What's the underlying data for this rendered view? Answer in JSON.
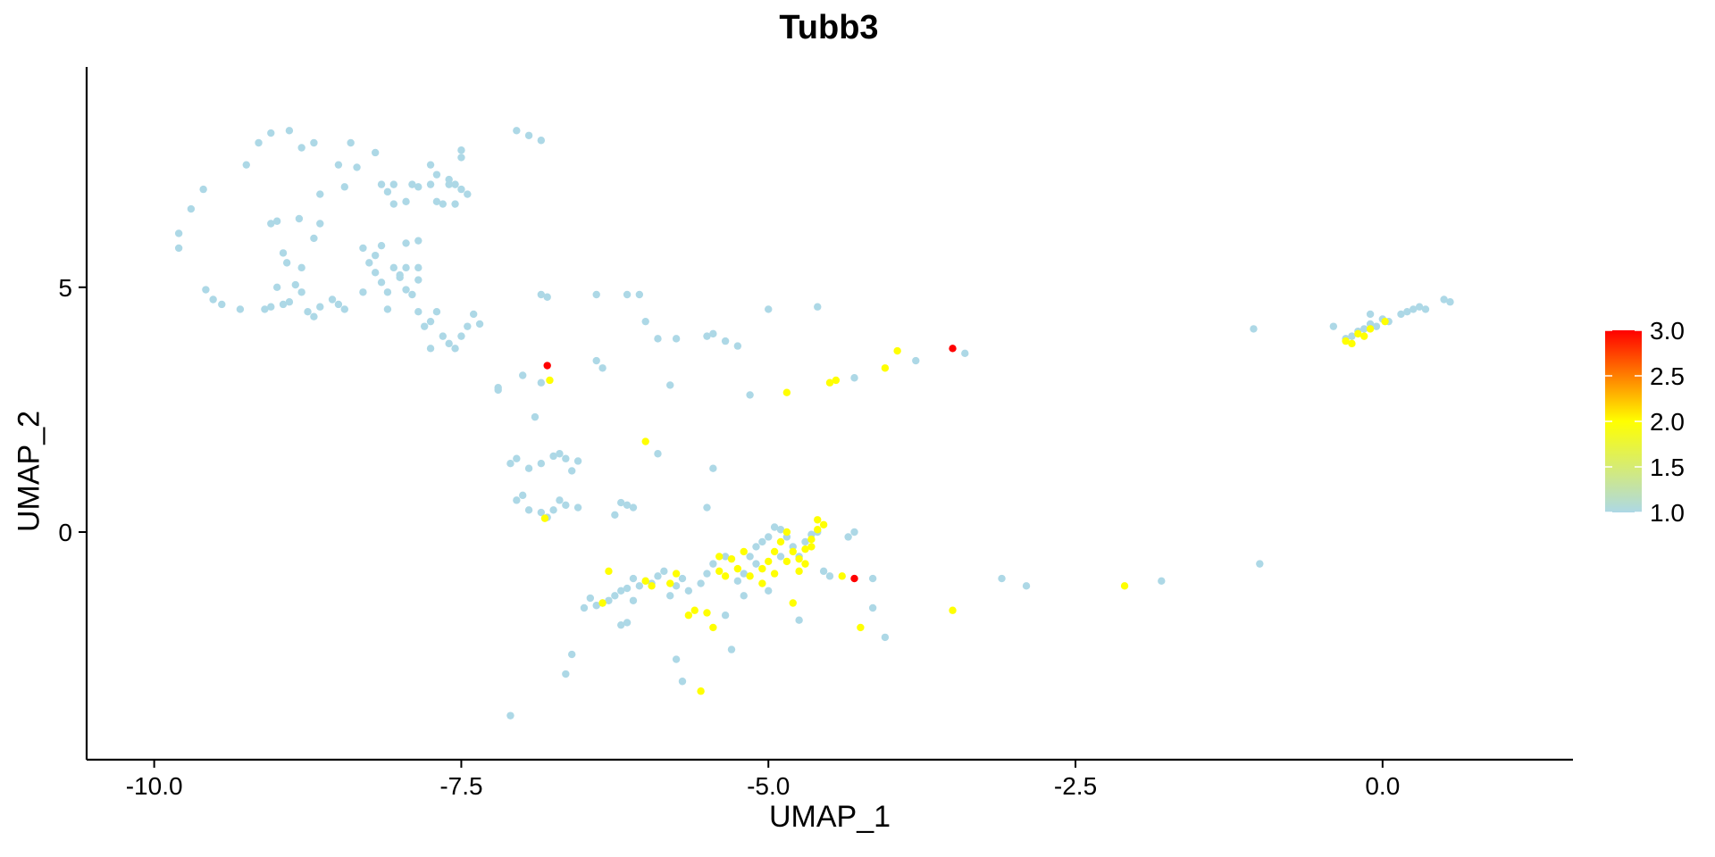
{
  "chart_data": {
    "type": "scatter",
    "title": "Tubb3",
    "xlabel": "UMAP_1",
    "ylabel": "UMAP_2",
    "xlim": [
      -10.55,
      1.55
    ],
    "ylim": [
      -4.65,
      9.5
    ],
    "x_ticks": [
      -10.0,
      -7.5,
      -5.0,
      -2.5,
      0.0
    ],
    "x_tick_labels": [
      "-10.0",
      "-7.5",
      "-5.0",
      "-2.5",
      "0.0"
    ],
    "y_ticks": [
      0,
      5
    ],
    "y_tick_labels": [
      "0",
      "5"
    ],
    "grid": false,
    "legend": {
      "type": "colorbar",
      "position": "right",
      "min": 1.0,
      "max": 3.0,
      "ticks": [
        1.0,
        1.5,
        2.0,
        2.5,
        3.0
      ],
      "tick_labels": [
        "1.0",
        "1.5",
        "2.0",
        "2.5",
        "3.0"
      ],
      "colors": [
        "#add8e6",
        "#ffff00",
        "#ff0000"
      ]
    },
    "colors": {
      "low": "#add8e6",
      "mid": "#ffff00",
      "high": "#ff0000"
    },
    "points": [
      [
        -9.8,
        6.1,
        1
      ],
      [
        -9.8,
        5.8,
        1
      ],
      [
        -9.58,
        4.95,
        1
      ],
      [
        -9.52,
        4.75,
        1
      ],
      [
        -9.45,
        4.65,
        1
      ],
      [
        -9.6,
        7.0,
        1
      ],
      [
        -9.7,
        6.6,
        1
      ],
      [
        -9.3,
        4.55,
        1
      ],
      [
        -9.1,
        4.55,
        1
      ],
      [
        -9.05,
        4.6,
        1
      ],
      [
        -8.95,
        4.65,
        1
      ],
      [
        -8.9,
        4.7,
        1
      ],
      [
        -9.0,
        5.0,
        1
      ],
      [
        -8.85,
        5.05,
        1
      ],
      [
        -8.8,
        4.9,
        1
      ],
      [
        -8.75,
        4.5,
        1
      ],
      [
        -8.7,
        4.4,
        1
      ],
      [
        -8.65,
        4.6,
        1
      ],
      [
        -9.05,
        6.3,
        1
      ],
      [
        -9.0,
        6.35,
        1
      ],
      [
        -8.95,
        5.7,
        1
      ],
      [
        -8.92,
        5.5,
        1
      ],
      [
        -8.8,
        5.4,
        1
      ],
      [
        -8.7,
        6.0,
        1
      ],
      [
        -8.65,
        6.3,
        1
      ],
      [
        -8.82,
        6.4,
        1
      ],
      [
        -9.25,
        7.5,
        1
      ],
      [
        -9.15,
        7.95,
        1
      ],
      [
        -9.05,
        8.15,
        1
      ],
      [
        -8.9,
        8.2,
        1
      ],
      [
        -8.8,
        7.85,
        1
      ],
      [
        -8.7,
        7.95,
        1
      ],
      [
        -8.5,
        7.5,
        1
      ],
      [
        -8.4,
        7.95,
        1
      ],
      [
        -8.35,
        7.45,
        1
      ],
      [
        -8.2,
        7.75,
        1
      ],
      [
        -8.65,
        6.9,
        1
      ],
      [
        -8.45,
        7.05,
        1
      ],
      [
        -8.55,
        4.75,
        1
      ],
      [
        -8.5,
        4.65,
        1
      ],
      [
        -8.45,
        4.55,
        1
      ],
      [
        -8.3,
        4.9,
        1
      ],
      [
        -8.25,
        5.5,
        1
      ],
      [
        -8.2,
        5.3,
        1
      ],
      [
        -8.15,
        5.1,
        1
      ],
      [
        -8.1,
        4.9,
        1
      ],
      [
        -8.05,
        5.4,
        1
      ],
      [
        -8.0,
        5.2,
        1
      ],
      [
        -7.95,
        4.95,
        1
      ],
      [
        -8.3,
        5.8,
        1
      ],
      [
        -8.2,
        5.65,
        1
      ],
      [
        -8.1,
        4.55,
        1
      ],
      [
        -7.9,
        4.85,
        1
      ],
      [
        -7.85,
        4.5,
        1
      ],
      [
        -7.8,
        4.2,
        1
      ],
      [
        -7.75,
        4.3,
        1
      ],
      [
        -7.7,
        4.5,
        1
      ],
      [
        -7.65,
        4.0,
        1
      ],
      [
        -7.6,
        3.85,
        1
      ],
      [
        -7.55,
        3.75,
        1
      ],
      [
        -7.5,
        4.0,
        1
      ],
      [
        -7.45,
        4.2,
        1
      ],
      [
        -7.4,
        4.45,
        1
      ],
      [
        -7.35,
        4.25,
        1
      ],
      [
        -7.2,
        2.95,
        1
      ],
      [
        -7.2,
        2.9,
        1
      ],
      [
        -7.75,
        3.75,
        1
      ],
      [
        -7.85,
        5.4,
        1
      ],
      [
        -7.85,
        5.15,
        1
      ],
      [
        -7.95,
        5.9,
        1
      ],
      [
        -8.15,
        5.85,
        1
      ],
      [
        -8.1,
        6.95,
        1
      ],
      [
        -8.05,
        7.1,
        1
      ],
      [
        -7.95,
        6.75,
        1
      ],
      [
        -7.9,
        7.1,
        1
      ],
      [
        -7.85,
        7.05,
        1
      ],
      [
        -7.75,
        7.1,
        1
      ],
      [
        -7.7,
        6.75,
        1
      ],
      [
        -7.65,
        6.7,
        1
      ],
      [
        -7.55,
        6.7,
        1
      ],
      [
        -7.5,
        7.0,
        1
      ],
      [
        -7.55,
        7.1,
        1
      ],
      [
        -7.6,
        7.1,
        1
      ],
      [
        -7.7,
        7.3,
        1
      ],
      [
        -7.75,
        7.5,
        1
      ],
      [
        -7.5,
        7.65,
        1
      ],
      [
        -7.45,
        6.9,
        1
      ],
      [
        -7.85,
        5.95,
        1
      ],
      [
        -7.95,
        5.4,
        1
      ],
      [
        -8.0,
        5.25,
        1
      ],
      [
        -8.05,
        6.7,
        1
      ],
      [
        -8.15,
        7.1,
        1
      ],
      [
        -7.5,
        7.8,
        1
      ],
      [
        -7.6,
        7.2,
        1
      ],
      [
        -7.05,
        8.2,
        1
      ],
      [
        -6.95,
        8.1,
        1
      ],
      [
        -6.85,
        8.0,
        1
      ],
      [
        -6.85,
        4.85,
        1
      ],
      [
        -6.8,
        4.8,
        1
      ],
      [
        -6.85,
        3.05,
        1
      ],
      [
        -7.0,
        3.2,
        1
      ],
      [
        -6.8,
        3.4,
        3
      ],
      [
        -6.9,
        2.35,
        1
      ],
      [
        -7.05,
        1.5,
        1
      ],
      [
        -7.1,
        1.4,
        1
      ],
      [
        -6.95,
        1.3,
        1
      ],
      [
        -6.85,
        1.4,
        1
      ],
      [
        -6.75,
        1.55,
        1
      ],
      [
        -6.7,
        1.6,
        1
      ],
      [
        -6.65,
        1.5,
        1
      ],
      [
        -6.6,
        1.25,
        1
      ],
      [
        -6.55,
        1.45,
        1
      ],
      [
        -7.0,
        0.75,
        1
      ],
      [
        -7.05,
        0.65,
        1
      ],
      [
        -6.95,
        0.45,
        1
      ],
      [
        -6.85,
        0.4,
        1
      ],
      [
        -6.8,
        0.3,
        1
      ],
      [
        -6.75,
        0.45,
        1
      ],
      [
        -6.7,
        0.65,
        1
      ],
      [
        -6.65,
        0.55,
        1
      ],
      [
        -6.55,
        0.5,
        1
      ],
      [
        -6.2,
        0.6,
        1
      ],
      [
        -6.15,
        0.55,
        1
      ],
      [
        -6.1,
        0.5,
        1
      ],
      [
        -6.25,
        0.35,
        1
      ],
      [
        -6.0,
        1.85,
        2
      ],
      [
        -5.9,
        1.6,
        1
      ],
      [
        -6.4,
        4.85,
        1
      ],
      [
        -6.15,
        4.85,
        1
      ],
      [
        -6.05,
        4.85,
        1
      ],
      [
        -6.0,
        4.3,
        1
      ],
      [
        -5.9,
        3.95,
        1
      ],
      [
        -5.5,
        4.0,
        1
      ],
      [
        -5.45,
        4.05,
        1
      ],
      [
        -5.35,
        3.9,
        1
      ],
      [
        -5.25,
        3.8,
        1
      ],
      [
        -5.0,
        4.55,
        1
      ],
      [
        -5.75,
        3.95,
        1
      ],
      [
        -6.4,
        3.5,
        1
      ],
      [
        -6.35,
        3.35,
        1
      ],
      [
        -5.45,
        1.3,
        1
      ],
      [
        -5.5,
        0.5,
        1
      ],
      [
        -6.78,
        3.1,
        2
      ],
      [
        -6.82,
        0.28,
        2
      ],
      [
        -5.8,
        3.0,
        1
      ],
      [
        -5.15,
        2.8,
        1
      ],
      [
        -4.85,
        2.85,
        2
      ],
      [
        -4.5,
        3.05,
        2
      ],
      [
        -4.45,
        3.1,
        2
      ],
      [
        -4.3,
        3.15,
        1
      ],
      [
        -4.05,
        3.35,
        2
      ],
      [
        -3.95,
        3.7,
        2
      ],
      [
        -3.8,
        3.5,
        1
      ],
      [
        -3.5,
        3.75,
        3
      ],
      [
        -3.4,
        3.65,
        1
      ],
      [
        -4.6,
        4.6,
        1
      ],
      [
        -5.35,
        -1.7,
        1
      ],
      [
        -5.3,
        -2.4,
        1
      ],
      [
        -5.2,
        -1.3,
        1
      ],
      [
        -5.15,
        -0.5,
        1
      ],
      [
        -5.1,
        -0.3,
        1
      ],
      [
        -5.05,
        -0.2,
        1
      ],
      [
        -5.0,
        -0.1,
        1
      ],
      [
        -4.95,
        0.1,
        1
      ],
      [
        -4.9,
        0.05,
        1
      ],
      [
        -4.85,
        -0.1,
        1
      ],
      [
        -4.8,
        -0.3,
        1
      ],
      [
        -4.75,
        -0.5,
        1
      ],
      [
        -4.7,
        -0.2,
        1
      ],
      [
        -4.65,
        -0.05,
        1
      ],
      [
        -4.6,
        0.0,
        1
      ],
      [
        -4.55,
        -0.8,
        1
      ],
      [
        -4.5,
        -0.9,
        1
      ],
      [
        -4.35,
        -0.1,
        1
      ],
      [
        -4.3,
        0.0,
        1
      ],
      [
        -4.15,
        -0.95,
        1
      ],
      [
        -4.15,
        -1.55,
        1
      ],
      [
        -4.05,
        -2.15,
        1
      ],
      [
        -5.05,
        -0.75,
        2
      ],
      [
        -5.0,
        -0.6,
        2
      ],
      [
        -4.95,
        -0.4,
        2
      ],
      [
        -4.9,
        -0.2,
        2
      ],
      [
        -4.85,
        0.0,
        2
      ],
      [
        -4.8,
        -0.4,
        2
      ],
      [
        -4.75,
        -0.55,
        2
      ],
      [
        -4.7,
        -0.35,
        2
      ],
      [
        -4.65,
        -0.15,
        2
      ],
      [
        -4.6,
        0.05,
        2
      ],
      [
        -4.55,
        0.15,
        2
      ],
      [
        -4.6,
        0.25,
        2
      ],
      [
        -4.65,
        -0.3,
        2
      ],
      [
        -4.7,
        -0.65,
        2
      ],
      [
        -4.75,
        -0.8,
        2
      ],
      [
        -4.85,
        -0.6,
        2
      ],
      [
        -4.95,
        -0.85,
        2
      ],
      [
        -5.05,
        -1.05,
        2
      ],
      [
        -5.15,
        -0.9,
        2
      ],
      [
        -5.25,
        -0.75,
        2
      ],
      [
        -5.3,
        -0.55,
        2
      ],
      [
        -5.2,
        -0.4,
        2
      ],
      [
        -5.4,
        -0.5,
        2
      ],
      [
        -4.8,
        -1.45,
        2
      ],
      [
        -4.4,
        -0.9,
        2
      ],
      [
        -4.25,
        -1.95,
        2
      ],
      [
        -4.3,
        -0.95,
        3
      ],
      [
        -3.5,
        -1.6,
        2
      ],
      [
        -5.45,
        -0.65,
        1
      ],
      [
        -5.5,
        -0.85,
        1
      ],
      [
        -5.55,
        -1.05,
        1
      ],
      [
        -5.65,
        -1.2,
        1
      ],
      [
        -5.7,
        -0.95,
        1
      ],
      [
        -5.75,
        -1.1,
        1
      ],
      [
        -5.8,
        -1.3,
        1
      ],
      [
        -5.85,
        -0.8,
        1
      ],
      [
        -5.9,
        -0.9,
        1
      ],
      [
        -5.95,
        -1.05,
        1
      ],
      [
        -6.0,
        -1.0,
        1
      ],
      [
        -6.05,
        -1.1,
        1
      ],
      [
        -6.1,
        -0.95,
        1
      ],
      [
        -6.15,
        -1.15,
        1
      ],
      [
        -6.2,
        -1.2,
        1
      ],
      [
        -6.25,
        -1.3,
        1
      ],
      [
        -6.3,
        -1.4,
        1
      ],
      [
        -6.35,
        -1.45,
        1
      ],
      [
        -6.4,
        -1.5,
        1
      ],
      [
        -6.45,
        -1.35,
        1
      ],
      [
        -6.5,
        -1.55,
        1
      ],
      [
        -6.1,
        -1.4,
        1
      ],
      [
        -6.15,
        -1.85,
        1
      ],
      [
        -6.2,
        -1.9,
        1
      ],
      [
        -5.75,
        -2.6,
        1
      ],
      [
        -5.7,
        -3.05,
        1
      ],
      [
        -6.6,
        -2.5,
        1
      ],
      [
        -6.65,
        -2.9,
        1
      ],
      [
        -7.1,
        -3.75,
        1
      ],
      [
        -4.75,
        -1.8,
        1
      ],
      [
        -5.0,
        -1.2,
        1
      ],
      [
        -5.1,
        -0.65,
        1
      ],
      [
        -5.2,
        -0.85,
        1
      ],
      [
        -5.25,
        -1.0,
        1
      ],
      [
        -5.35,
        -0.5,
        1
      ],
      [
        -4.9,
        -0.5,
        1
      ],
      [
        -5.8,
        -1.05,
        2
      ],
      [
        -5.65,
        -1.7,
        2
      ],
      [
        -5.6,
        -1.6,
        2
      ],
      [
        -5.5,
        -1.65,
        2
      ],
      [
        -5.45,
        -1.95,
        2
      ],
      [
        -5.4,
        -0.8,
        2
      ],
      [
        -5.75,
        -0.85,
        2
      ],
      [
        -6.3,
        -0.8,
        2
      ],
      [
        -6.35,
        -1.45,
        2
      ],
      [
        -6.0,
        -1.0,
        2
      ],
      [
        -5.95,
        -1.1,
        2
      ],
      [
        -5.55,
        -3.25,
        2
      ],
      [
        -5.35,
        -0.9,
        2
      ],
      [
        -3.1,
        -0.95,
        1
      ],
      [
        -2.9,
        -1.1,
        1
      ],
      [
        -2.1,
        -1.1,
        2
      ],
      [
        -1.8,
        -1.0,
        1
      ],
      [
        -1.0,
        -0.65,
        1
      ],
      [
        -1.05,
        4.15,
        1
      ],
      [
        -0.4,
        4.2,
        1
      ],
      [
        -0.3,
        3.95,
        1
      ],
      [
        -0.25,
        4.0,
        1
      ],
      [
        -0.2,
        4.1,
        1
      ],
      [
        -0.15,
        4.15,
        1
      ],
      [
        -0.1,
        4.25,
        1
      ],
      [
        -0.05,
        4.2,
        1
      ],
      [
        0.0,
        4.35,
        1
      ],
      [
        -0.1,
        4.45,
        1
      ],
      [
        0.05,
        4.3,
        1
      ],
      [
        0.15,
        4.45,
        1
      ],
      [
        0.2,
        4.5,
        1
      ],
      [
        0.25,
        4.55,
        1
      ],
      [
        0.3,
        4.6,
        1
      ],
      [
        0.35,
        4.55,
        1
      ],
      [
        0.5,
        4.75,
        1
      ],
      [
        0.55,
        4.7,
        1
      ],
      [
        -0.3,
        3.9,
        2
      ],
      [
        -0.25,
        3.85,
        2
      ],
      [
        -0.2,
        4.05,
        2
      ],
      [
        -0.15,
        4.0,
        2
      ],
      [
        -0.1,
        4.15,
        2
      ],
      [
        0.02,
        4.3,
        2
      ]
    ]
  }
}
